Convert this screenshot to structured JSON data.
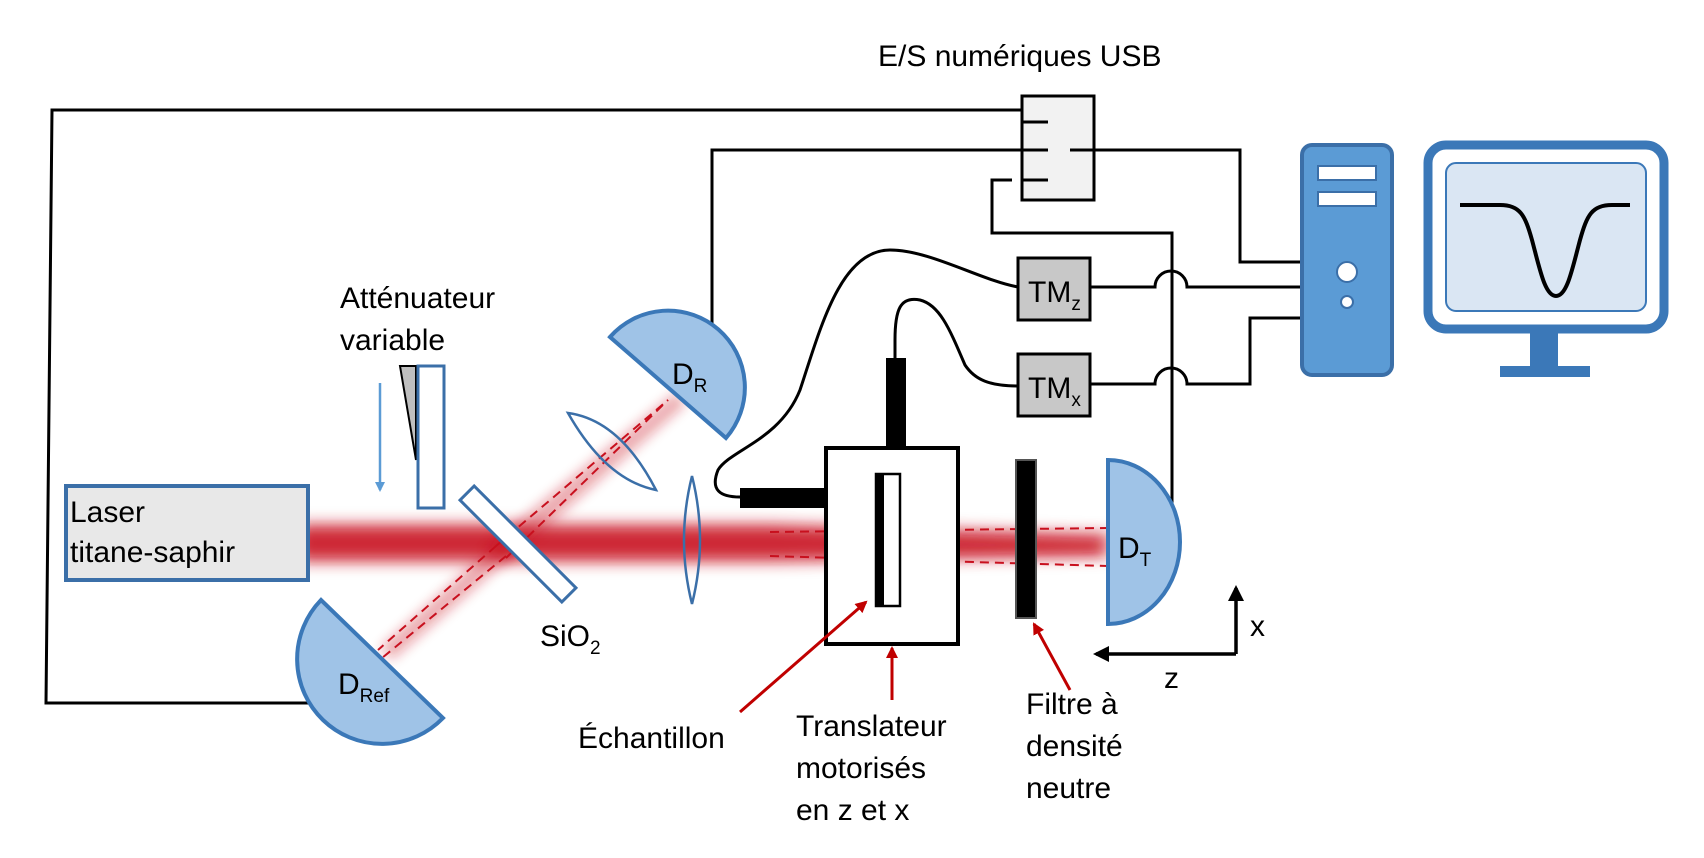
{
  "usb_io": {
    "label": "E/S numériques USB"
  },
  "laser": {
    "line1": "Laser",
    "line2": "titane-saphir"
  },
  "attenuator": {
    "line1": "Atténuateur",
    "line2": "variable"
  },
  "beamsplitter": {
    "main": "SiO",
    "sub": "2"
  },
  "detectors": {
    "reflection": {
      "main": "D",
      "sub": "R"
    },
    "reference": {
      "main": "D",
      "sub": "Ref"
    },
    "transmission": {
      "main": "D",
      "sub": "T"
    }
  },
  "motor_z": {
    "main": "TM",
    "sub": "z"
  },
  "motor_x": {
    "main": "TM",
    "sub": "x"
  },
  "sample": {
    "label": "Échantillon"
  },
  "translator": {
    "line1": "Translateur",
    "line2": "motorisés",
    "line3": "en z et x"
  },
  "filter": {
    "line1": "Filtre à",
    "line2": "densité",
    "line3": "neutre"
  },
  "axes": {
    "x": "x",
    "z": "z"
  },
  "colors": {
    "beam": "#c8101e",
    "detector_fill": "#9fc3e7",
    "detector_stroke": "#3b78b8",
    "computer_blue": "#5b9bd5",
    "annotation_arrow": "#c00000"
  }
}
